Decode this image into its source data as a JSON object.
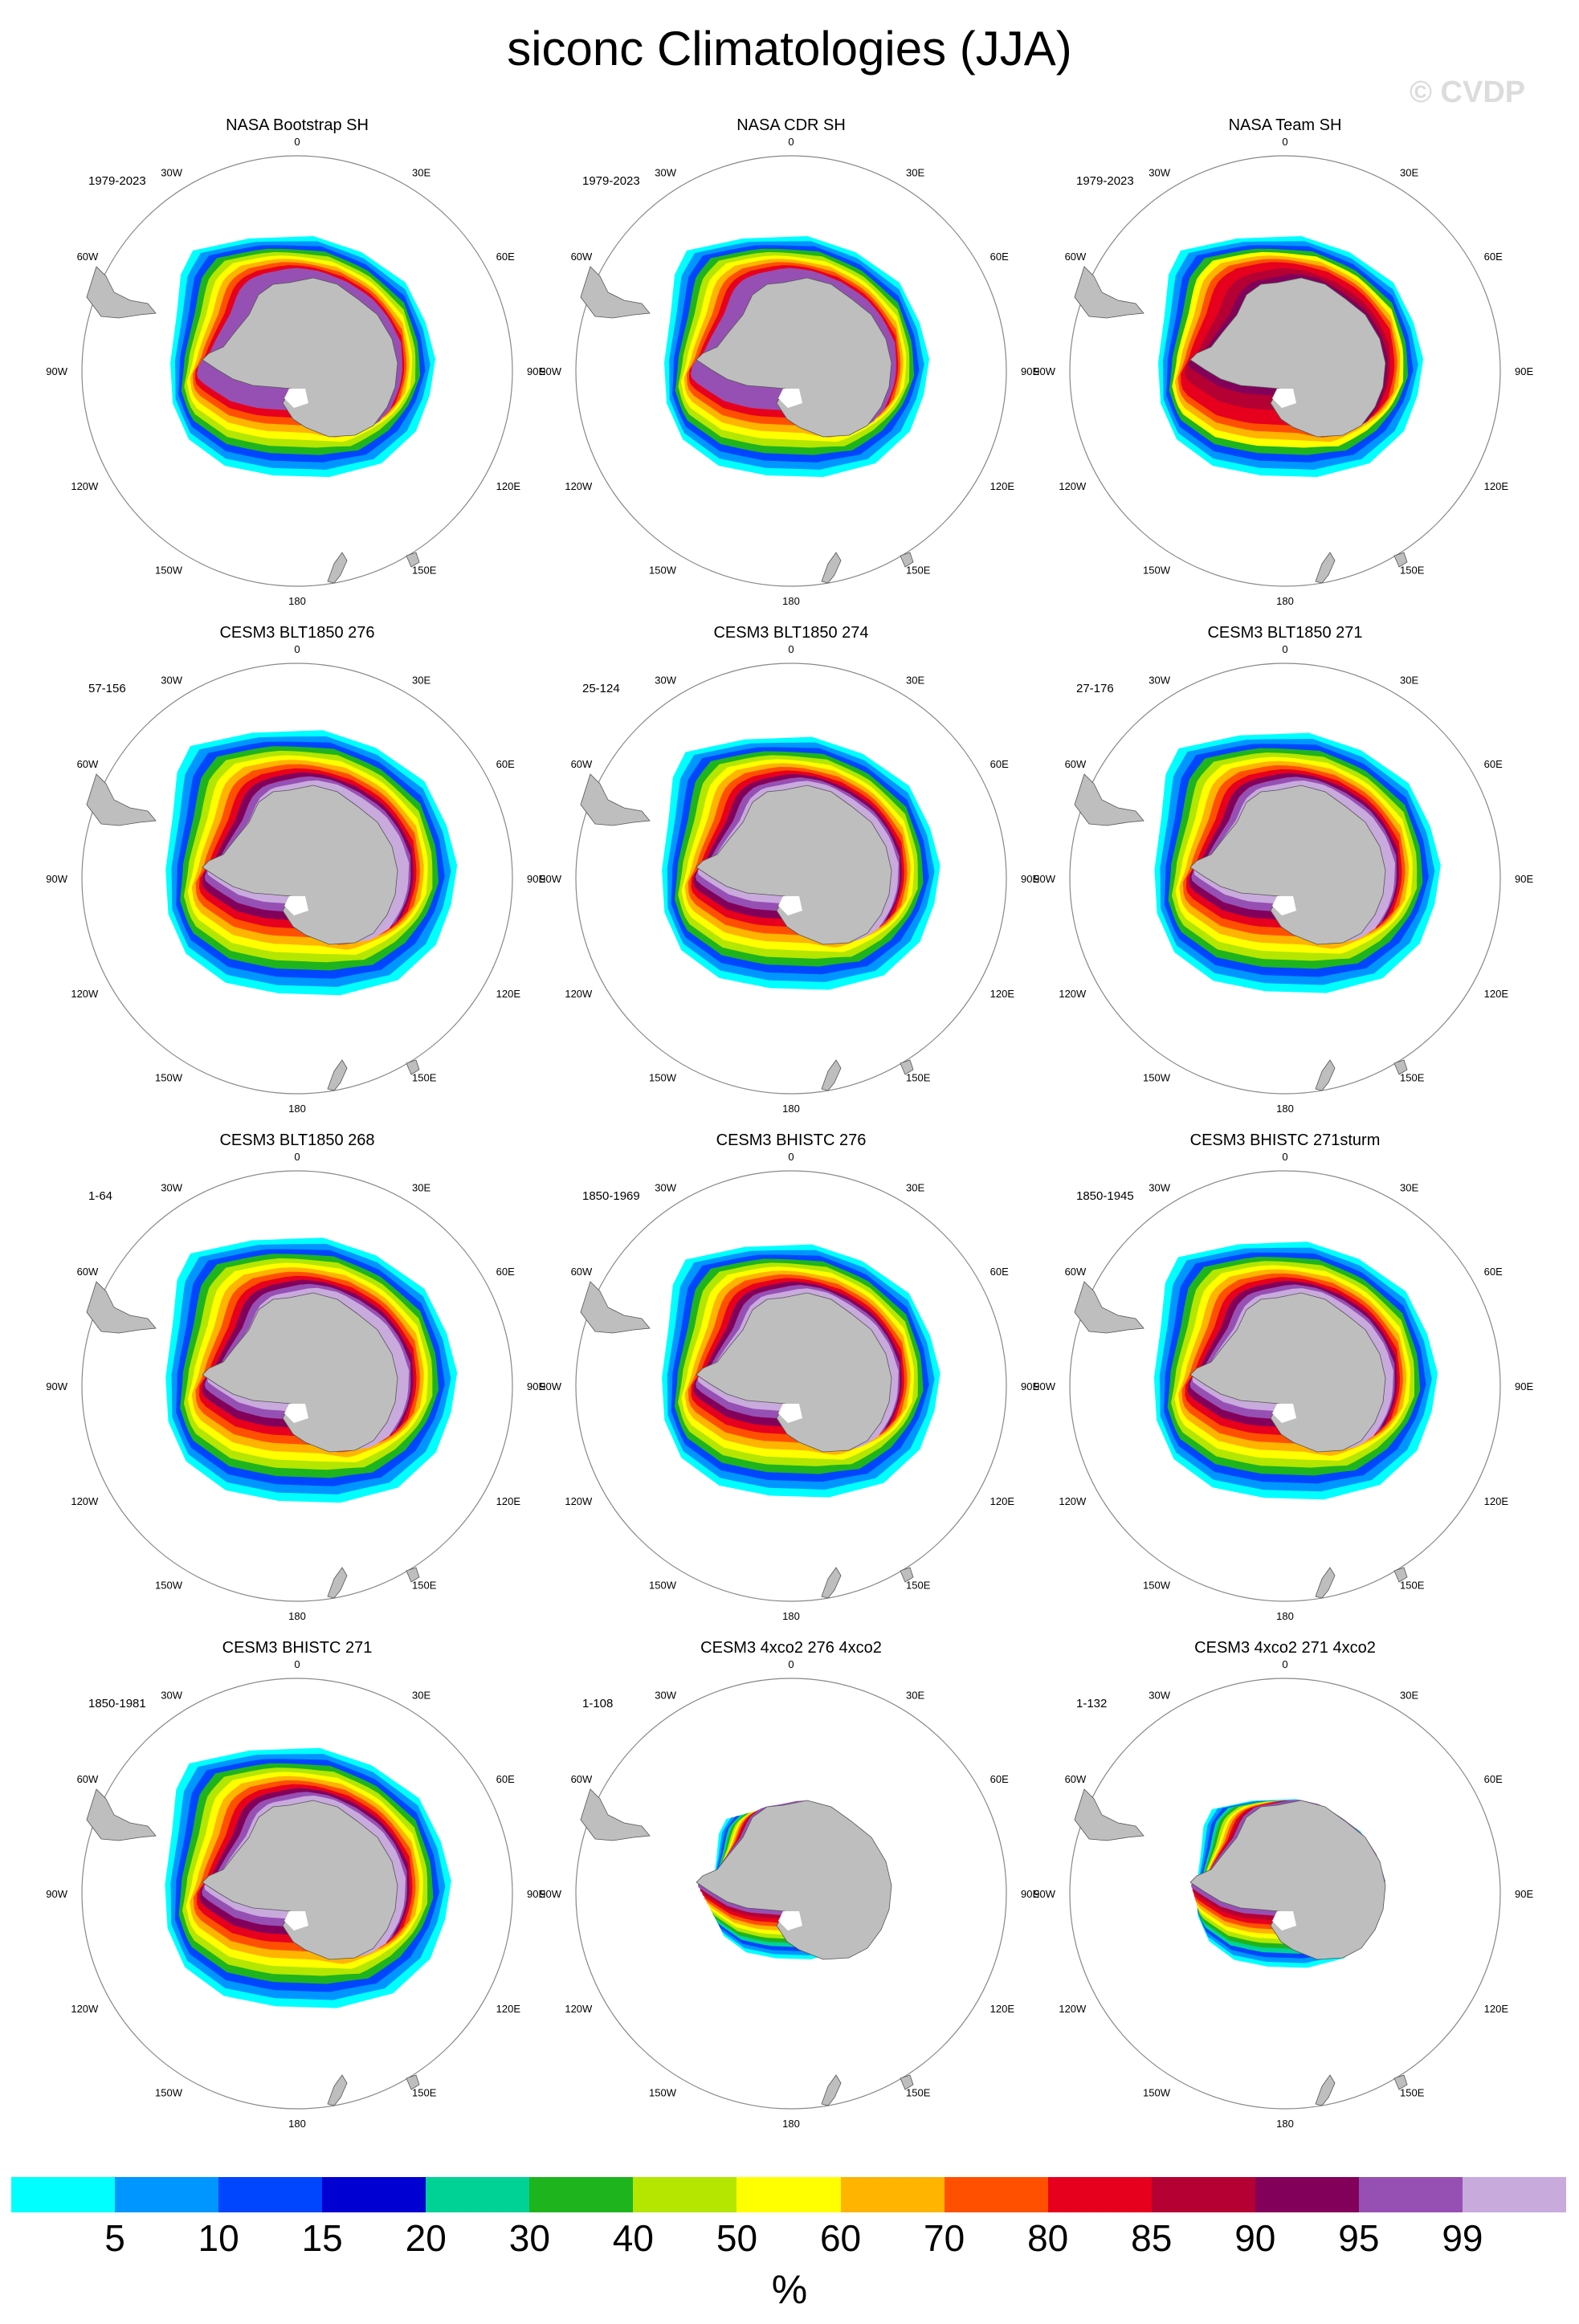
{
  "title": "siconc Climatologies (JJA)",
  "watermark": "© CVDP",
  "lon_labels": [
    "0",
    "30E",
    "60E",
    "90E",
    "120E",
    "150E",
    "180",
    "150W",
    "120W",
    "90W",
    "60W",
    "30W"
  ],
  "panels": [
    {
      "title": "NASA Bootstrap SH",
      "period": "1979-2023",
      "style": "obs",
      "ice": {
        "band": 1.0,
        "ross": 1.0,
        "shift": [
          0,
          0
        ]
      }
    },
    {
      "title": "NASA CDR SH",
      "period": "1979-2023",
      "style": "obs",
      "ice": {
        "band": 1.0,
        "ross": 1.0,
        "shift": [
          0,
          0
        ]
      }
    },
    {
      "title": "NASA Team SH",
      "period": "1979-2023",
      "style": "team",
      "ice": {
        "band": 1.0,
        "ross": 1.0,
        "shift": [
          0,
          0
        ]
      }
    },
    {
      "title": "CESM3 BLT1850 276",
      "period": "57-156",
      "style": "model",
      "ice": {
        "band": 1.1,
        "ross": 1.0,
        "shift": [
          10,
          0
        ]
      }
    },
    {
      "title": "CESM3 BLT1850 274",
      "period": "25-124",
      "style": "model",
      "ice": {
        "band": 1.05,
        "ross": 1.0,
        "shift": [
          5,
          0
        ]
      }
    },
    {
      "title": "CESM3 BLT1850 271",
      "period": "27-176",
      "style": "model",
      "ice": {
        "band": 1.08,
        "ross": 1.0,
        "shift": [
          8,
          0
        ]
      }
    },
    {
      "title": "CESM3 BLT1850 268",
      "period": "1-64",
      "style": "model",
      "ice": {
        "band": 1.1,
        "ross": 1.0,
        "shift": [
          10,
          0
        ]
      }
    },
    {
      "title": "CESM3 BHISTC 276",
      "period": "1850-1969",
      "style": "model",
      "ice": {
        "band": 1.05,
        "ross": 1.0,
        "shift": [
          5,
          0
        ]
      }
    },
    {
      "title": "CESM3 BHISTC 271sturm",
      "period": "1850-1945",
      "style": "model",
      "ice": {
        "band": 1.07,
        "ross": 1.0,
        "shift": [
          6,
          0
        ]
      }
    },
    {
      "title": "CESM3 BHISTC 271",
      "period": "1850-1981",
      "style": "model",
      "ice": {
        "band": 1.08,
        "ross": 1.0,
        "shift": [
          6,
          0
        ]
      }
    },
    {
      "title": "CESM3 4xco2 276 4xco2",
      "period": "1-108",
      "style": "warm",
      "ice": {
        "band": 0.62,
        "ross": 0.8,
        "shift": [
          0,
          0
        ]
      }
    },
    {
      "title": "CESM3 4xco2 271 4xco2",
      "period": "1-132",
      "style": "warm",
      "ice": {
        "band": 0.7,
        "ross": 0.85,
        "shift": [
          0,
          0
        ]
      }
    }
  ],
  "colorbar": {
    "colors": [
      "#00ffff",
      "#0096ff",
      "#0046ff",
      "#0000d2",
      "#00d296",
      "#1eb41e",
      "#b4e600",
      "#ffff00",
      "#ffb400",
      "#ff5000",
      "#e6001e",
      "#b40032",
      "#82005a",
      "#9650b4",
      "#c8aadc"
    ],
    "labels": [
      "5",
      "10",
      "15",
      "20",
      "30",
      "40",
      "50",
      "60",
      "70",
      "80",
      "85",
      "90",
      "95",
      "99"
    ],
    "units": "%"
  },
  "colors": {
    "land": "#bebebe",
    "land_edge": "#555555",
    "circle": "#888888"
  }
}
